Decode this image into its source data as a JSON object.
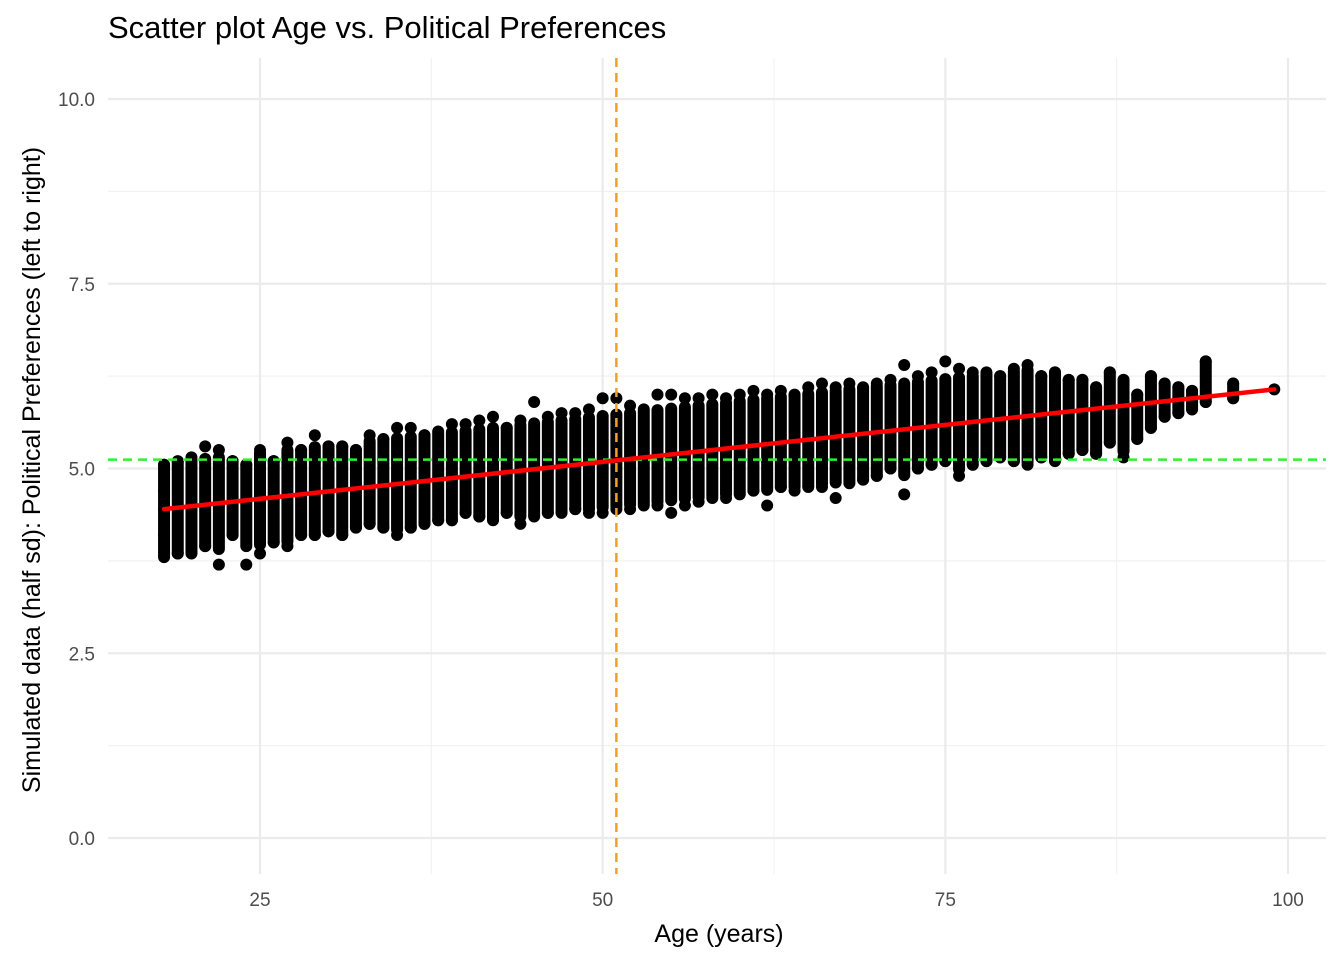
{
  "chart_data": {
    "type": "scatter",
    "title": "Scatter plot Age vs. Political Preferences",
    "xlabel": "Age (years)",
    "ylabel": "Simulated data (half sd): Political Preferences (left to right)",
    "xlim": [
      14,
      102
    ],
    "ylim": [
      -0.5,
      10.5
    ],
    "x_ticks": [
      25,
      50,
      75,
      100
    ],
    "x_tick_labels": [
      "25",
      "50",
      "75",
      "100"
    ],
    "y_ticks": [
      0,
      2.5,
      5,
      7.5,
      10
    ],
    "y_tick_labels": [
      "0.0",
      "2.5",
      "5.0",
      "7.5",
      "10.0"
    ],
    "grid": true,
    "x_range_observed": [
      18,
      99
    ],
    "regression_line": {
      "color": "#ff0000",
      "x": [
        18,
        99
      ],
      "y": [
        4.45,
        6.07
      ]
    },
    "vline": {
      "x": 51,
      "color": "#f0a02a",
      "style": "dashed"
    },
    "hline": {
      "y": 5.12,
      "color": "#33ee33",
      "style": "dashed"
    },
    "point_color": "#000000",
    "series": [
      {
        "points": [
          [
            18,
            4.45
          ],
          [
            18,
            3.8
          ],
          [
            18,
            5.05
          ],
          [
            18,
            4.1
          ],
          [
            18,
            4.7
          ],
          [
            19,
            3.85
          ],
          [
            19,
            5.1
          ],
          [
            20,
            5.15
          ],
          [
            20,
            3.85
          ],
          [
            21,
            3.95
          ],
          [
            21,
            5.3
          ],
          [
            22,
            3.7
          ],
          [
            22,
            5.25
          ],
          [
            23,
            4.1
          ],
          [
            23,
            5.1
          ],
          [
            24,
            3.7
          ],
          [
            24,
            5.05
          ],
          [
            25,
            3.85
          ],
          [
            25,
            5.25
          ],
          [
            26,
            4.0
          ],
          [
            26,
            5.1
          ],
          [
            27,
            3.95
          ],
          [
            27,
            5.35
          ],
          [
            28,
            4.1
          ],
          [
            28,
            5.25
          ],
          [
            29,
            4.1
          ],
          [
            29,
            5.45
          ],
          [
            30,
            4.15
          ],
          [
            30,
            5.3
          ],
          [
            31,
            4.1
          ],
          [
            31,
            5.3
          ],
          [
            32,
            4.2
          ],
          [
            32,
            5.25
          ],
          [
            33,
            4.25
          ],
          [
            33,
            5.45
          ],
          [
            34,
            4.2
          ],
          [
            34,
            5.4
          ],
          [
            35,
            4.1
          ],
          [
            35,
            5.55
          ],
          [
            36,
            4.2
          ],
          [
            36,
            5.55
          ],
          [
            37,
            4.25
          ],
          [
            37,
            5.45
          ],
          [
            38,
            4.3
          ],
          [
            38,
            5.5
          ],
          [
            39,
            4.3
          ],
          [
            39,
            5.6
          ],
          [
            40,
            4.4
          ],
          [
            40,
            5.6
          ],
          [
            41,
            4.35
          ],
          [
            41,
            5.65
          ],
          [
            42,
            4.3
          ],
          [
            42,
            5.7
          ],
          [
            43,
            4.4
          ],
          [
            43,
            5.55
          ],
          [
            44,
            4.25
          ],
          [
            44,
            5.65
          ],
          [
            45,
            4.35
          ],
          [
            45,
            5.9
          ],
          [
            46,
            4.4
          ],
          [
            46,
            5.7
          ],
          [
            47,
            4.4
          ],
          [
            47,
            5.75
          ],
          [
            48,
            4.45
          ],
          [
            48,
            5.75
          ],
          [
            49,
            4.4
          ],
          [
            49,
            5.8
          ],
          [
            50,
            4.4
          ],
          [
            50,
            5.95
          ],
          [
            51,
            4.45
          ],
          [
            51,
            5.95
          ],
          [
            52,
            4.45
          ],
          [
            52,
            5.85
          ],
          [
            53,
            4.5
          ],
          [
            53,
            5.8
          ],
          [
            54,
            4.5
          ],
          [
            54,
            6.0
          ],
          [
            55,
            4.4
          ],
          [
            55,
            6.0
          ],
          [
            56,
            4.5
          ],
          [
            56,
            5.95
          ],
          [
            57,
            4.55
          ],
          [
            57,
            5.95
          ],
          [
            58,
            4.6
          ],
          [
            58,
            6.0
          ],
          [
            59,
            4.6
          ],
          [
            59,
            5.95
          ],
          [
            60,
            4.65
          ],
          [
            60,
            6.0
          ],
          [
            61,
            4.7
          ],
          [
            61,
            6.05
          ],
          [
            62,
            4.5
          ],
          [
            62,
            6.0
          ],
          [
            63,
            4.75
          ],
          [
            63,
            6.05
          ],
          [
            64,
            4.7
          ],
          [
            64,
            6.0
          ],
          [
            65,
            4.75
          ],
          [
            65,
            6.1
          ],
          [
            66,
            4.75
          ],
          [
            66,
            6.15
          ],
          [
            67,
            4.6
          ],
          [
            67,
            6.1
          ],
          [
            68,
            4.8
          ],
          [
            68,
            6.15
          ],
          [
            69,
            4.85
          ],
          [
            69,
            6.1
          ],
          [
            70,
            4.9
          ],
          [
            70,
            6.15
          ],
          [
            71,
            5.0
          ],
          [
            71,
            6.2
          ],
          [
            72,
            4.65
          ],
          [
            72,
            6.4
          ],
          [
            73,
            5.0
          ],
          [
            73,
            6.25
          ],
          [
            74,
            5.05
          ],
          [
            74,
            6.3
          ],
          [
            75,
            5.1
          ],
          [
            75,
            6.45
          ],
          [
            76,
            4.9
          ],
          [
            76,
            6.35
          ],
          [
            77,
            5.05
          ],
          [
            77,
            6.3
          ],
          [
            78,
            5.1
          ],
          [
            78,
            6.3
          ],
          [
            79,
            5.15
          ],
          [
            79,
            6.25
          ],
          [
            80,
            5.1
          ],
          [
            80,
            6.35
          ],
          [
            81,
            5.05
          ],
          [
            81,
            6.4
          ],
          [
            82,
            5.15
          ],
          [
            82,
            6.25
          ],
          [
            83,
            5.1
          ],
          [
            83,
            6.3
          ],
          [
            84,
            5.2
          ],
          [
            84,
            6.2
          ],
          [
            85,
            5.25
          ],
          [
            85,
            6.2
          ],
          [
            86,
            5.2
          ],
          [
            86,
            6.1
          ],
          [
            87,
            5.35
          ],
          [
            87,
            6.3
          ],
          [
            88,
            5.15
          ],
          [
            88,
            6.2
          ],
          [
            89,
            5.4
          ],
          [
            89,
            6.0
          ],
          [
            90,
            5.55
          ],
          [
            90,
            6.25
          ],
          [
            91,
            5.7
          ],
          [
            91,
            6.15
          ],
          [
            92,
            5.75
          ],
          [
            92,
            6.1
          ],
          [
            93,
            5.8
          ],
          [
            93,
            6.05
          ],
          [
            94,
            5.9
          ],
          [
            94,
            6.45
          ],
          [
            96,
            5.95
          ],
          [
            96,
            6.15
          ],
          [
            99,
            6.07
          ]
        ]
      }
    ]
  }
}
